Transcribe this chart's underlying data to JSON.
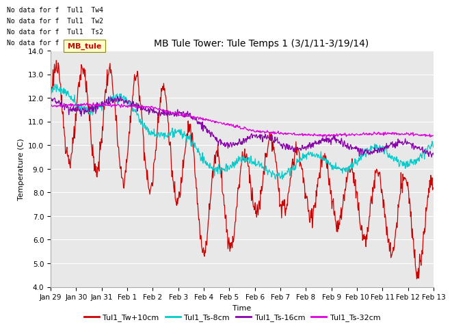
{
  "title": "MB Tule Tower: Tule Temps 1 (3/1/11-3/19/14)",
  "xlabel": "Time",
  "ylabel": "Temperature (C)",
  "ylim": [
    4.0,
    14.0
  ],
  "yticks": [
    4.0,
    5.0,
    6.0,
    7.0,
    8.0,
    9.0,
    10.0,
    11.0,
    12.0,
    13.0,
    14.0
  ],
  "colors": {
    "Tw10cm": "#cc0000",
    "Ts8cm": "#00cccc",
    "Ts16cm": "#8800aa",
    "Ts32cm": "#dd00dd"
  },
  "legend_labels": [
    "Tul1_Tw+10cm",
    "Tul1_Ts-8cm",
    "Tul1_Ts-16cm",
    "Tul1_Ts-32cm"
  ],
  "no_data_lines": [
    "No data for f  Tul1  Tw4",
    "No data for f  Tul1  Tw2",
    "No data for f  Tul1  Ts2",
    "No data for f  Tul1  Ts"
  ],
  "xtick_labels": [
    "Jan 29",
    "Jan 30",
    "Jan 31",
    "Feb 1",
    "Feb 2",
    "Feb 3",
    "Feb 4",
    "Feb 5",
    "Feb 6",
    "Feb 7",
    "Feb 8",
    "Feb 9",
    "Feb 10",
    "Feb 11",
    "Feb 12",
    "Feb 13"
  ],
  "fig_bg_color": "#ffffff",
  "plot_bg_color": "#e8e8e8",
  "grid_color": "#ffffff",
  "title_fontsize": 10,
  "axis_fontsize": 8,
  "tick_fontsize": 7.5
}
